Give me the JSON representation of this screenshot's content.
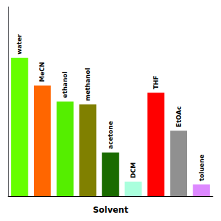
{
  "chart_data": {
    "type": "bar",
    "xlabel": "Solvent",
    "categories": [
      "water",
      "MeCN",
      "ethanol",
      "methanol",
      "acetone",
      "DCM",
      "THF",
      "EtOAc",
      "toluene"
    ],
    "values": [
      95,
      76,
      65,
      63,
      30,
      10,
      71,
      45,
      8
    ],
    "colors": [
      "#66FF00",
      "#FF6600",
      "#55EE00",
      "#808000",
      "#1A6B00",
      "#AAFFDD",
      "#FF0000",
      "#909090",
      "#DD88FF"
    ],
    "ylim": [
      0,
      130
    ],
    "tick_labels": false,
    "grid": false
  }
}
